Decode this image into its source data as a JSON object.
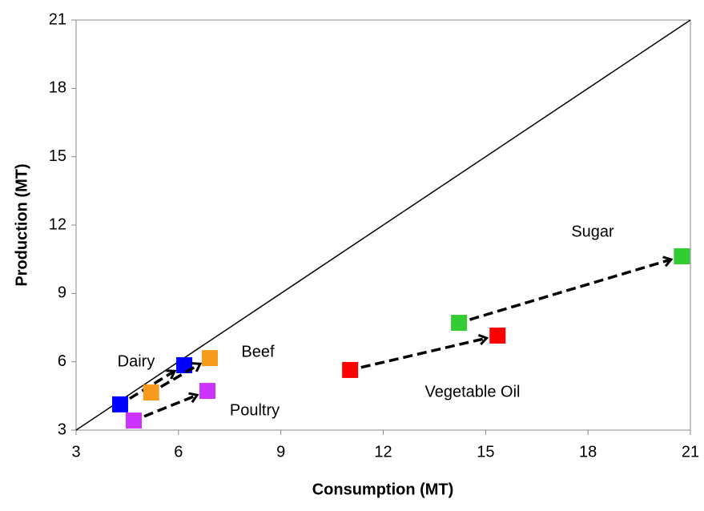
{
  "chart_data": {
    "type": "scatter",
    "x_label": "Consumption (MT)",
    "y_label": "Production (MT)",
    "xlim": [
      3,
      21
    ],
    "ylim": [
      3,
      21
    ],
    "xticks": [
      3,
      6,
      9,
      12,
      15,
      18,
      21
    ],
    "yticks": [
      3,
      6,
      9,
      12,
      15,
      18,
      21
    ],
    "grid": false,
    "identity_line": true,
    "arrows": true,
    "series": [
      {
        "name": "Dairy",
        "color": "#0000ff",
        "x": [
          4.29,
          6.17
        ],
        "y": [
          4.13,
          5.85
        ]
      },
      {
        "name": "Beef",
        "color": "#f79a1e",
        "x": [
          5.2,
          6.92
        ],
        "y": [
          4.65,
          6.16
        ]
      },
      {
        "name": "Poultry",
        "color": "#cc33ff",
        "x": [
          4.69,
          6.85
        ],
        "y": [
          3.42,
          4.72
        ]
      },
      {
        "name": "Vegetable Oil",
        "color": "#ff0000",
        "x": [
          11.03,
          15.35
        ],
        "y": [
          5.64,
          7.15
        ]
      },
      {
        "name": "Sugar",
        "color": "#33cc33",
        "x": [
          14.22,
          20.75
        ],
        "y": [
          7.71,
          10.63
        ]
      }
    ]
  }
}
